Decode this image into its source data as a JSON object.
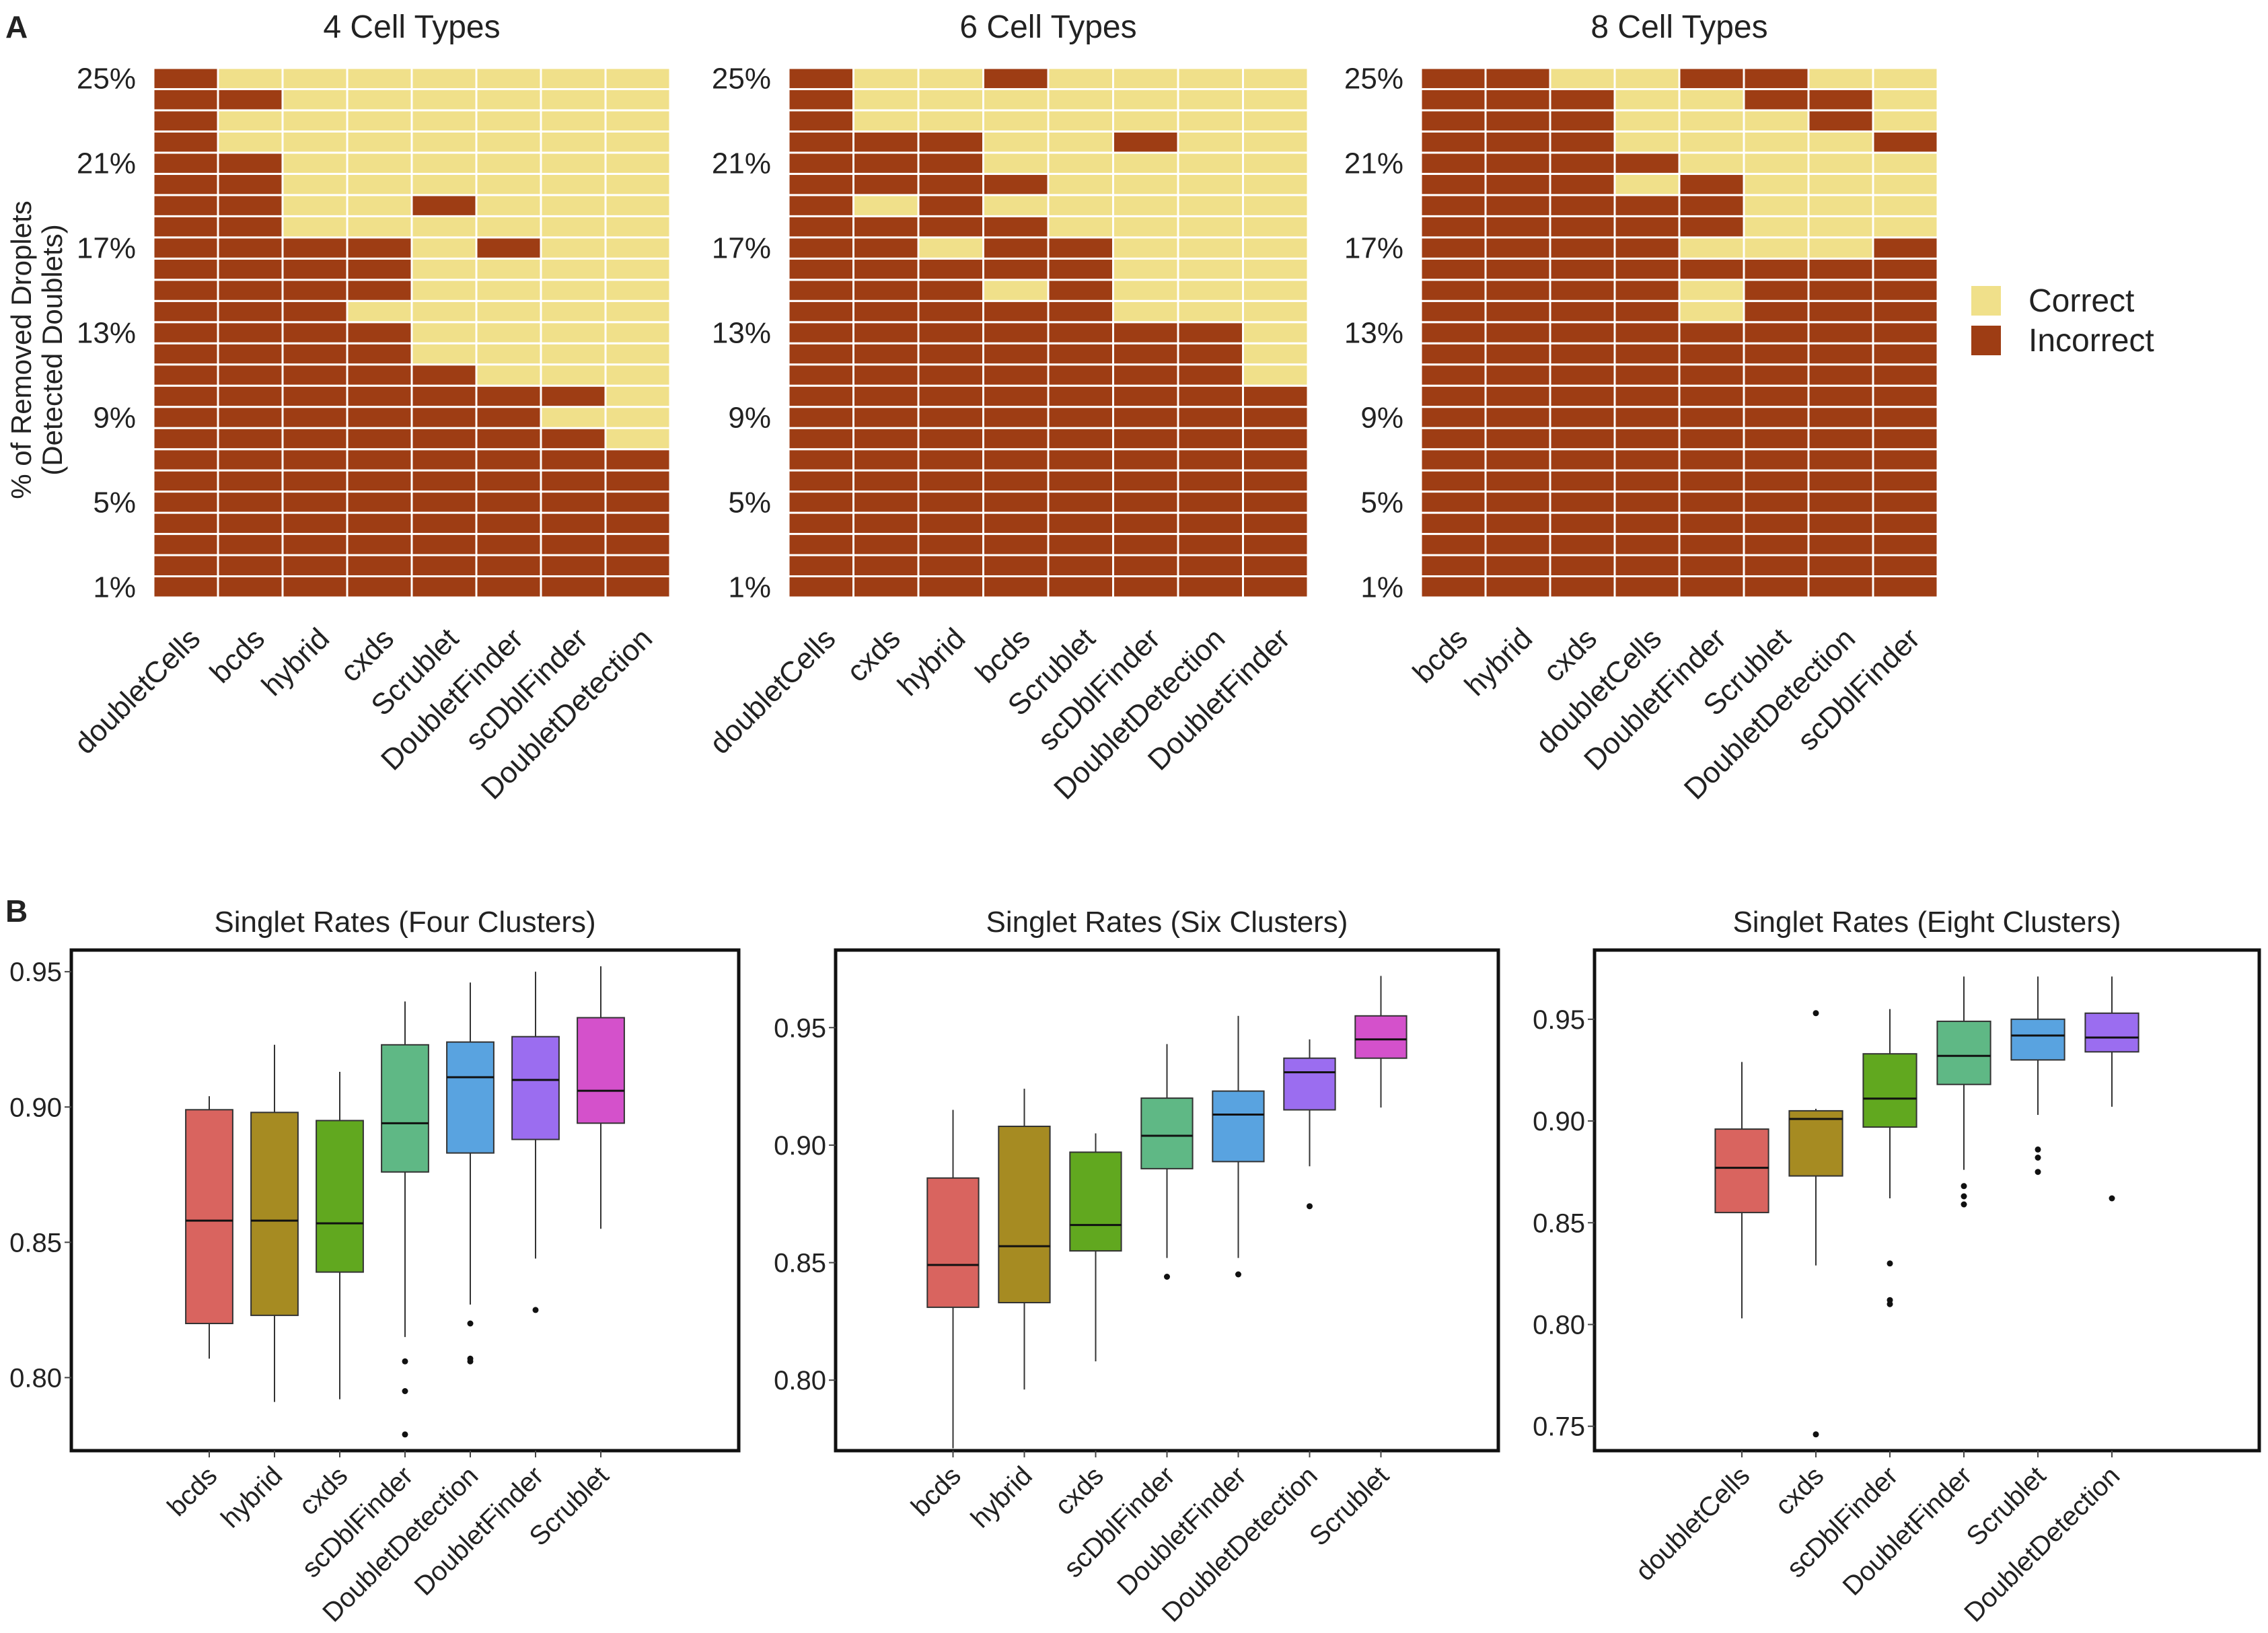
{
  "figure": {
    "panel_a_label": "A",
    "panel_b_label": "B"
  },
  "legend": {
    "entries": [
      {
        "label": "Correct",
        "color": "#f0e08a"
      },
      {
        "label": "Incorrect",
        "color": "#9e3d14"
      }
    ]
  },
  "colors": {
    "correct": "#f0e08a",
    "incorrect": "#9e3d14",
    "box_fill": [
      "#d9645f",
      "#a68b22",
      "#61a81f",
      "#5fb885",
      "#59a3e0",
      "#9b6df0",
      "#d451cb"
    ]
  },
  "chart_data": [
    {
      "type": "heatmap",
      "title": "4 Cell Types",
      "ylabel": "% of Removed Droplets (Detected Doublets)",
      "ylabel_lines": [
        "% of Removed Droplets",
        "(Detected Doublets)"
      ],
      "y_levels_percent": [
        1,
        2,
        3,
        4,
        5,
        6,
        7,
        8,
        9,
        10,
        11,
        12,
        13,
        14,
        15,
        16,
        17,
        18,
        19,
        20,
        21,
        22,
        23,
        24,
        25
      ],
      "y_tick_labels": [
        "1%",
        "5%",
        "9%",
        "13%",
        "17%",
        "21%",
        "25%"
      ],
      "y_tick_values": [
        1,
        5,
        9,
        13,
        17,
        21,
        25
      ],
      "categories": [
        "doubletCells",
        "bcds",
        "hybrid",
        "cxds",
        "Scrublet",
        "DoubletFinder",
        "scDblFinder",
        "DoubletDetection"
      ],
      "correct_levels": [
        [],
        [
          22,
          23,
          25
        ],
        [
          18,
          19,
          20,
          21,
          22,
          23,
          24,
          25
        ],
        [
          14,
          18,
          19,
          20,
          21,
          22,
          23,
          24,
          25
        ],
        [
          12,
          13,
          14,
          15,
          16,
          17,
          18,
          20,
          21,
          22,
          23,
          24,
          25
        ],
        [
          11,
          12,
          13,
          14,
          15,
          16,
          18,
          19,
          20,
          21,
          22,
          23,
          24,
          25
        ],
        [
          9,
          11,
          12,
          13,
          14,
          15,
          16,
          17,
          18,
          19,
          20,
          21,
          22,
          23,
          24,
          25
        ],
        [
          8,
          9,
          10,
          11,
          12,
          13,
          14,
          15,
          16,
          17,
          18,
          19,
          20,
          21,
          22,
          23,
          24,
          25
        ]
      ]
    },
    {
      "type": "heatmap",
      "title": "6 Cell Types",
      "y_levels_percent": [
        1,
        2,
        3,
        4,
        5,
        6,
        7,
        8,
        9,
        10,
        11,
        12,
        13,
        14,
        15,
        16,
        17,
        18,
        19,
        20,
        21,
        22,
        23,
        24,
        25
      ],
      "y_tick_labels": [
        "1%",
        "5%",
        "9%",
        "13%",
        "17%",
        "21%",
        "25%"
      ],
      "y_tick_values": [
        1,
        5,
        9,
        13,
        17,
        21,
        25
      ],
      "categories": [
        "doubletCells",
        "cxds",
        "hybrid",
        "bcds",
        "Scrublet",
        "scDblFinder",
        "DoubletDetection",
        "DoubletFinder"
      ],
      "correct_levels": [
        [],
        [
          19,
          23,
          24,
          25
        ],
        [
          17,
          23,
          24,
          25
        ],
        [
          15,
          19,
          21,
          22,
          23,
          24
        ],
        [
          18,
          19,
          20,
          21,
          22,
          23,
          24,
          25
        ],
        [
          14,
          15,
          16,
          17,
          18,
          19,
          20,
          21,
          23,
          24,
          25
        ],
        [
          14,
          15,
          16,
          17,
          18,
          19,
          20,
          21,
          22,
          23,
          24,
          25
        ],
        [
          11,
          12,
          13,
          14,
          15,
          16,
          17,
          18,
          19,
          20,
          21,
          22,
          23,
          24,
          25
        ]
      ]
    },
    {
      "type": "heatmap",
      "title": "8 Cell Types",
      "y_levels_percent": [
        1,
        2,
        3,
        4,
        5,
        6,
        7,
        8,
        9,
        10,
        11,
        12,
        13,
        14,
        15,
        16,
        17,
        18,
        19,
        20,
        21,
        22,
        23,
        24,
        25
      ],
      "y_tick_labels": [
        "1%",
        "5%",
        "9%",
        "13%",
        "17%",
        "21%",
        "25%"
      ],
      "y_tick_values": [
        1,
        5,
        9,
        13,
        17,
        21,
        25
      ],
      "categories": [
        "bcds",
        "hybrid",
        "cxds",
        "doubletCells",
        "DoubletFinder",
        "Scrublet",
        "DoubletDetection",
        "scDblFinder"
      ],
      "correct_levels": [
        [],
        [],
        [
          25
        ],
        [
          20,
          22,
          23,
          24,
          25
        ],
        [
          14,
          15,
          17,
          21,
          22,
          23,
          24
        ],
        [
          17,
          18,
          19,
          20,
          21,
          22,
          23
        ],
        [
          17,
          18,
          19,
          20,
          21,
          22,
          25
        ],
        [
          18,
          19,
          20,
          21,
          23,
          24,
          25
        ]
      ]
    },
    {
      "type": "box",
      "title": "Singlet Rates (Four Clusters)",
      "ylim": [
        0.773,
        0.958
      ],
      "y_ticks": [
        0.8,
        0.85,
        0.9,
        0.95
      ],
      "y_tick_labels": [
        "0.80",
        "0.85",
        "0.90",
        "0.95"
      ],
      "categories": [
        "bcds",
        "hybrid",
        "cxds",
        "scDblFinder",
        "DoubletDetection",
        "DoubletFinder",
        "Scrublet"
      ],
      "boxes": [
        {
          "min": 0.807,
          "q1": 0.82,
          "median": 0.858,
          "q3": 0.899,
          "max": 0.904,
          "outliers": []
        },
        {
          "min": 0.791,
          "q1": 0.823,
          "median": 0.858,
          "q3": 0.898,
          "max": 0.923,
          "outliers": []
        },
        {
          "min": 0.792,
          "q1": 0.839,
          "median": 0.857,
          "q3": 0.895,
          "max": 0.913,
          "outliers": []
        },
        {
          "min": 0.815,
          "q1": 0.876,
          "median": 0.894,
          "q3": 0.923,
          "max": 0.939,
          "outliers": [
            0.806,
            0.795,
            0.779
          ]
        },
        {
          "min": 0.827,
          "q1": 0.883,
          "median": 0.911,
          "q3": 0.924,
          "max": 0.946,
          "outliers": [
            0.82,
            0.807,
            0.806
          ]
        },
        {
          "min": 0.844,
          "q1": 0.888,
          "median": 0.91,
          "q3": 0.926,
          "max": 0.95,
          "outliers": [
            0.825
          ]
        },
        {
          "min": 0.855,
          "q1": 0.894,
          "median": 0.906,
          "q3": 0.933,
          "max": 0.952,
          "outliers": []
        }
      ]
    },
    {
      "type": "box",
      "title": "Singlet Rates (Six Clusters)",
      "ylim": [
        0.77,
        0.983
      ],
      "y_ticks": [
        0.8,
        0.85,
        0.9,
        0.95
      ],
      "y_tick_labels": [
        "0.80",
        "0.85",
        "0.90",
        "0.95"
      ],
      "categories": [
        "bcds",
        "hybrid",
        "cxds",
        "scDblFinder",
        "DoubletFinder",
        "DoubletDetection",
        "Scrublet"
      ],
      "boxes": [
        {
          "min": 0.771,
          "q1": 0.831,
          "median": 0.849,
          "q3": 0.886,
          "max": 0.915,
          "outliers": []
        },
        {
          "min": 0.796,
          "q1": 0.833,
          "median": 0.857,
          "q3": 0.908,
          "max": 0.924,
          "outliers": []
        },
        {
          "min": 0.808,
          "q1": 0.855,
          "median": 0.866,
          "q3": 0.897,
          "max": 0.905,
          "outliers": []
        },
        {
          "min": 0.852,
          "q1": 0.89,
          "median": 0.904,
          "q3": 0.92,
          "max": 0.943,
          "outliers": [
            0.844
          ]
        },
        {
          "min": 0.852,
          "q1": 0.893,
          "median": 0.913,
          "q3": 0.923,
          "max": 0.955,
          "outliers": [
            0.845
          ]
        },
        {
          "min": 0.891,
          "q1": 0.915,
          "median": 0.931,
          "q3": 0.937,
          "max": 0.945,
          "outliers": [
            0.874
          ]
        },
        {
          "min": 0.916,
          "q1": 0.937,
          "median": 0.945,
          "q3": 0.955,
          "max": 0.972,
          "outliers": []
        }
      ]
    },
    {
      "type": "box",
      "title": "Singlet Rates (Eight Clusters)",
      "ylim": [
        0.738,
        0.984
      ],
      "y_ticks": [
        0.75,
        0.8,
        0.85,
        0.9,
        0.95
      ],
      "y_tick_labels": [
        "0.75",
        "0.80",
        "0.85",
        "0.90",
        "0.95"
      ],
      "categories": [
        "doubletCells",
        "cxds",
        "scDblFinder",
        "DoubletFinder",
        "Scrublet",
        "DoubletDetection"
      ],
      "boxes": [
        {
          "min": 0.803,
          "q1": 0.855,
          "median": 0.877,
          "q3": 0.896,
          "max": 0.929,
          "outliers": []
        },
        {
          "min": 0.829,
          "q1": 0.873,
          "median": 0.901,
          "q3": 0.905,
          "max": 0.906,
          "outliers": [
            0.953,
            0.746
          ]
        },
        {
          "min": 0.862,
          "q1": 0.897,
          "median": 0.911,
          "q3": 0.933,
          "max": 0.955,
          "outliers": [
            0.83,
            0.812,
            0.81
          ]
        },
        {
          "min": 0.876,
          "q1": 0.918,
          "median": 0.932,
          "q3": 0.949,
          "max": 0.971,
          "outliers": [
            0.868,
            0.863,
            0.859
          ]
        },
        {
          "min": 0.903,
          "q1": 0.93,
          "median": 0.942,
          "q3": 0.95,
          "max": 0.971,
          "outliers": [
            0.886,
            0.882,
            0.875
          ]
        },
        {
          "min": 0.907,
          "q1": 0.934,
          "median": 0.941,
          "q3": 0.953,
          "max": 0.971,
          "outliers": [
            0.862
          ]
        }
      ]
    }
  ]
}
